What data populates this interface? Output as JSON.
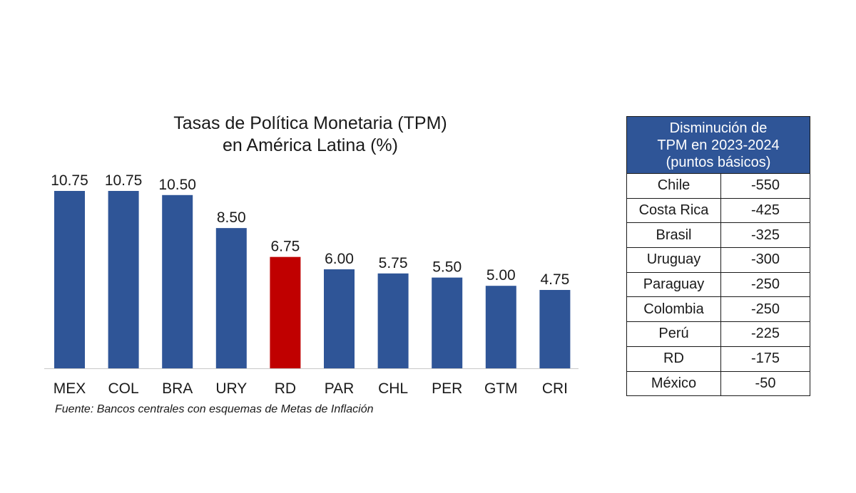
{
  "chart_data": {
    "type": "bar",
    "title_lines": [
      "Tasas de Política Monetaria (TPM)",
      "en América Latina (%)"
    ],
    "categories": [
      "MEX",
      "COL",
      "BRA",
      "URY",
      "RD",
      "PAR",
      "CHL",
      "PER",
      "GTM",
      "CRI"
    ],
    "values": [
      10.75,
      10.75,
      10.5,
      8.5,
      6.75,
      6.0,
      5.75,
      5.5,
      5.0,
      4.75
    ],
    "value_labels": [
      "10.75",
      "10.75",
      "10.50",
      "8.50",
      "6.75",
      "6.00",
      "5.75",
      "5.50",
      "5.00",
      "4.75"
    ],
    "highlight_category": "RD",
    "colors": {
      "bar": "#2f5597",
      "highlight": "#c00000"
    },
    "ylim": [
      0,
      10.75
    ],
    "grid": false,
    "xlabel": "",
    "ylabel": ""
  },
  "source_note": "Fuente: Bancos centrales con esquemas de Metas de Inflación",
  "table": {
    "header_lines": [
      "Disminución de",
      "TPM en 2023-2024",
      "(puntos básicos)"
    ],
    "rows": [
      {
        "country": "Chile",
        "value": "-550"
      },
      {
        "country": "Costa Rica",
        "value": "-425"
      },
      {
        "country": "Brasil",
        "value": "-325"
      },
      {
        "country": "Uruguay",
        "value": "-300"
      },
      {
        "country": "Paraguay",
        "value": "-250"
      },
      {
        "country": "Colombia",
        "value": "-250"
      },
      {
        "country": "Perú",
        "value": "-225"
      },
      {
        "country": "RD",
        "value": "-175"
      },
      {
        "country": "México",
        "value": "-50"
      }
    ]
  }
}
